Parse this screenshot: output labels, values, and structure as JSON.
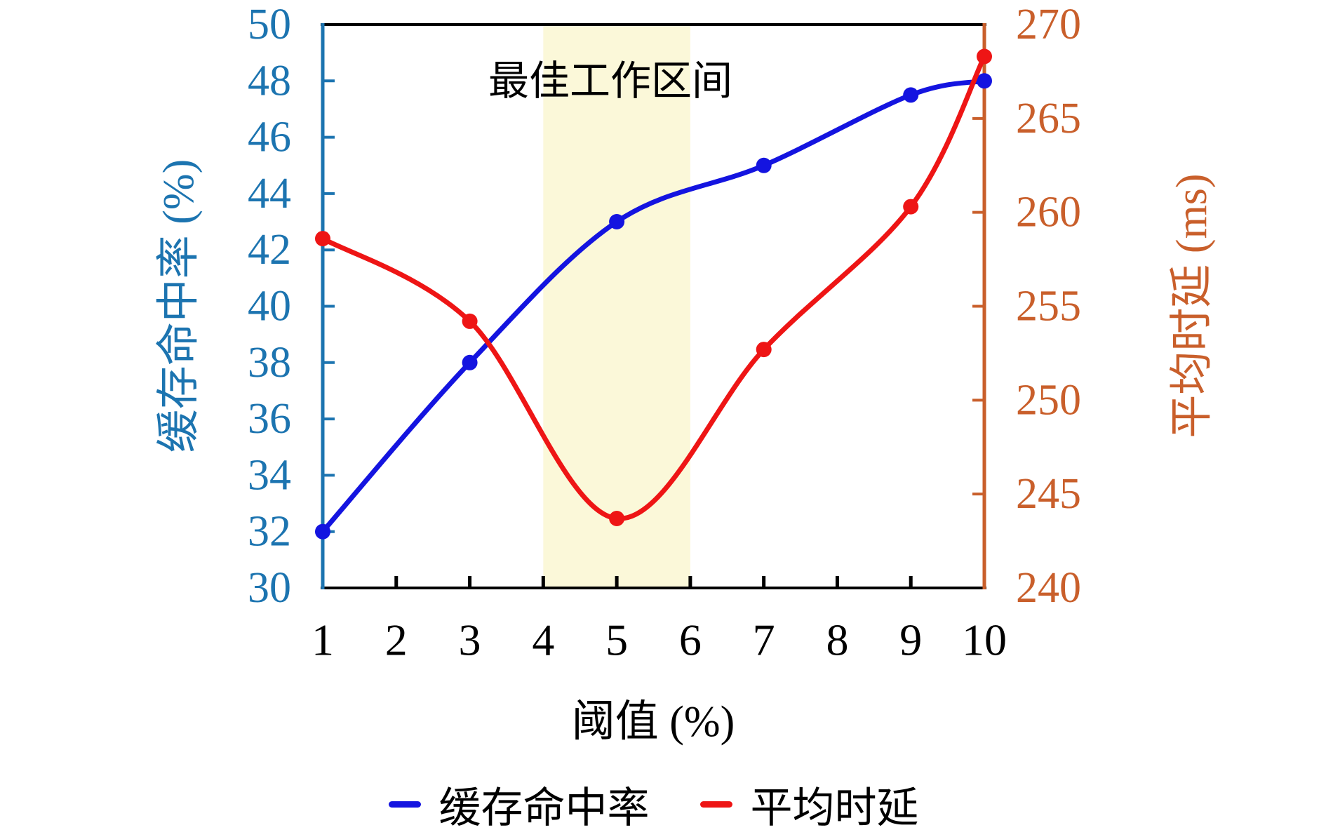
{
  "chart_data": {
    "type": "line",
    "title": "最佳工作区间",
    "x_axis": {
      "label": "阈值 (%)",
      "range": [
        1,
        10
      ],
      "ticks": [
        1,
        2,
        3,
        4,
        5,
        6,
        7,
        8,
        9,
        10
      ],
      "color": "#000000"
    },
    "left_axis": {
      "label": "缓存命中率 (%)",
      "range": [
        30,
        50
      ],
      "ticks": [
        30,
        32,
        34,
        36,
        38,
        40,
        42,
        44,
        46,
        48,
        50
      ],
      "color": "#1C74B0"
    },
    "right_axis": {
      "label": "平均时延 (ms)",
      "range": [
        240,
        270
      ],
      "ticks": [
        240,
        245,
        250,
        255,
        260,
        265,
        270
      ],
      "color": "#C95F2B"
    },
    "highlight_band": {
      "x_start": 4,
      "x_end": 6,
      "color": "#FBF8D9",
      "label": "最佳工作区间"
    },
    "series": [
      {
        "id": "cache-hit-rate",
        "name": "缓存命中率",
        "axis": "left",
        "color": "#1414E0",
        "x": [
          1,
          3,
          5,
          7,
          9,
          10
        ],
        "y": [
          32,
          38,
          43,
          45,
          47.5,
          48
        ]
      },
      {
        "id": "avg-latency",
        "name": "平均时延",
        "axis": "right",
        "color": "#EE1515",
        "x": [
          1,
          3,
          5,
          7,
          9,
          10
        ],
        "y": [
          258.6,
          254.2,
          243.7,
          252.7,
          260.3,
          268.3
        ]
      }
    ],
    "legend": [
      {
        "label": "缓存命中率",
        "color": "#1414E0"
      },
      {
        "label": "平均时延",
        "color": "#EE1515"
      }
    ],
    "grid": false,
    "legend_position": "bottom-center"
  }
}
